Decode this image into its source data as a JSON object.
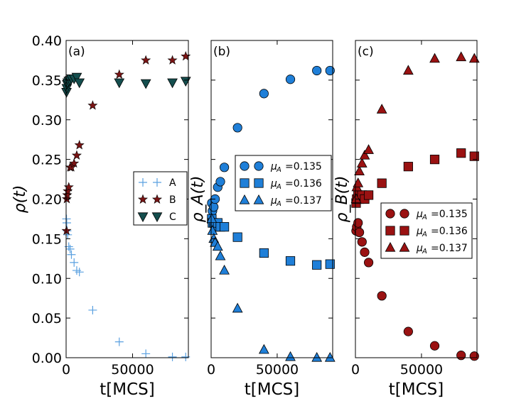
{
  "colors": {
    "A": "#5aa0e0",
    "B": "#7a1414",
    "C": "#144e4e",
    "mu_135_b": "#1f7fd8",
    "mu_136_b": "#1f7fd8",
    "mu_137_b": "#1f7fd8",
    "mu_135_c": "#9a1212",
    "mu_136_c": "#9a1212",
    "mu_137_c": "#9a1212"
  },
  "chart_data": [
    {
      "type": "scatter",
      "panel_label": "(a)",
      "xlabel": "t[MCS]",
      "ylabel": "ρ(t)",
      "xlim": [
        0,
        92000
      ],
      "ylim": [
        0.0,
        0.4
      ],
      "xticks": [
        0,
        50000
      ],
      "xtick_labels": [
        "0",
        "50000"
      ],
      "yticks": [
        0.0,
        0.05,
        0.1,
        0.15,
        0.2,
        0.25,
        0.3,
        0.35,
        0.4
      ],
      "ytick_labels": [
        "0.00",
        "0.05",
        "0.10",
        "0.15",
        "0.20",
        "0.25",
        "0.30",
        "0.35",
        "0.40"
      ],
      "legend_position": "center-right",
      "series": [
        {
          "name": "A",
          "marker": "plus",
          "color_key": "A",
          "x": [
            300,
            500,
            800,
            1200,
            2000,
            3000,
            4000,
            6000,
            8000,
            10000,
            20000,
            40000,
            60000,
            80000,
            90000
          ],
          "y": [
            0.175,
            0.17,
            0.16,
            0.155,
            0.14,
            0.137,
            0.13,
            0.12,
            0.11,
            0.108,
            0.06,
            0.02,
            0.005,
            0.001,
            0.001
          ]
        },
        {
          "name": "B",
          "marker": "star",
          "color_key": "B",
          "x": [
            300,
            500,
            800,
            1200,
            2000,
            3000,
            4000,
            6000,
            8000,
            10000,
            20000,
            40000,
            60000,
            80000,
            90000
          ],
          "y": [
            0.16,
            0.2,
            0.205,
            0.21,
            0.215,
            0.24,
            0.24,
            0.245,
            0.255,
            0.268,
            0.318,
            0.357,
            0.375,
            0.375,
            0.38
          ]
        },
        {
          "name": "C",
          "marker": "triangle-down",
          "color_key": "C",
          "x": [
            300,
            500,
            800,
            1200,
            2000,
            3000,
            4000,
            6000,
            8000,
            10000,
            40000,
            60000,
            80000,
            90000
          ],
          "y": [
            0.335,
            0.34,
            0.345,
            0.347,
            0.349,
            0.35,
            0.352,
            0.352,
            0.354,
            0.347,
            0.347,
            0.346,
            0.347,
            0.349
          ]
        }
      ]
    },
    {
      "type": "scatter",
      "panel_label": "(b)",
      "xlabel": "t[MCS]",
      "ylabel": "ρ_A(t)",
      "xlim": [
        0,
        92000
      ],
      "ylim": [
        0.0,
        0.4
      ],
      "xticks": [
        0,
        50000
      ],
      "xtick_labels": [
        "0",
        "50000"
      ],
      "legend_position": "center-right",
      "series": [
        {
          "name": "μ_A =0.135",
          "legend_text": "=0.135",
          "marker": "circle",
          "color_key": "mu_135_b",
          "x": [
            500,
            1000,
            2000,
            3000,
            5000,
            7000,
            10000,
            20000,
            40000,
            60000,
            80000,
            90000
          ],
          "y": [
            0.195,
            0.185,
            0.19,
            0.2,
            0.215,
            0.222,
            0.24,
            0.29,
            0.333,
            0.351,
            0.362,
            0.362
          ]
        },
        {
          "name": "μ_A =0.136",
          "legend_text": "=0.136",
          "marker": "square",
          "color_key": "mu_136_b",
          "x": [
            500,
            1000,
            2000,
            3000,
            5000,
            7000,
            10000,
            20000,
            40000,
            60000,
            80000,
            90000
          ],
          "y": [
            0.175,
            0.17,
            0.17,
            0.165,
            0.17,
            0.165,
            0.165,
            0.152,
            0.132,
            0.122,
            0.117,
            0.118
          ]
        },
        {
          "name": "μ_A =0.137",
          "legend_text": "=0.137",
          "marker": "triangle-up",
          "color_key": "mu_137_b",
          "x": [
            500,
            1000,
            2000,
            3000,
            5000,
            7000,
            10000,
            20000,
            40000,
            60000,
            80000,
            90000
          ],
          "y": [
            0.175,
            0.16,
            0.15,
            0.145,
            0.14,
            0.128,
            0.11,
            0.062,
            0.01,
            0.001,
            0.0,
            0.0
          ]
        }
      ]
    },
    {
      "type": "scatter",
      "panel_label": "(c)",
      "xlabel": "t[MCS]",
      "ylabel": "ρ_B(t)",
      "xlim": [
        0,
        92000
      ],
      "ylim": [
        0.0,
        0.4
      ],
      "xticks": [
        0,
        50000
      ],
      "xtick_labels": [
        "0",
        "50000"
      ],
      "legend_position": "lower-right",
      "series": [
        {
          "name": "μ_A =0.135",
          "legend_text": "=0.135",
          "marker": "circle",
          "color_key": "mu_135_c",
          "x": [
            500,
            1000,
            2000,
            3000,
            5000,
            7000,
            10000,
            20000,
            40000,
            60000,
            80000,
            90000
          ],
          "y": [
            0.16,
            0.165,
            0.17,
            0.158,
            0.146,
            0.133,
            0.12,
            0.078,
            0.033,
            0.015,
            0.003,
            0.002
          ]
        },
        {
          "name": "μ_A =0.136",
          "legend_text": "=0.136",
          "marker": "square",
          "color_key": "mu_136_c",
          "x": [
            500,
            1000,
            2000,
            3000,
            5000,
            7000,
            10000,
            20000,
            40000,
            60000,
            80000,
            90000
          ],
          "y": [
            0.195,
            0.2,
            0.205,
            0.2,
            0.205,
            0.2,
            0.205,
            0.22,
            0.241,
            0.25,
            0.258,
            0.254
          ]
        },
        {
          "name": "μ_A =0.137",
          "legend_text": "=0.137",
          "marker": "triangle-up",
          "color_key": "mu_137_c",
          "x": [
            500,
            1000,
            2000,
            3000,
            5000,
            7000,
            10000,
            20000,
            40000,
            60000,
            80000,
            90000
          ],
          "y": [
            0.2,
            0.215,
            0.22,
            0.235,
            0.245,
            0.255,
            0.262,
            0.313,
            0.362,
            0.377,
            0.379,
            0.377
          ]
        }
      ]
    }
  ]
}
